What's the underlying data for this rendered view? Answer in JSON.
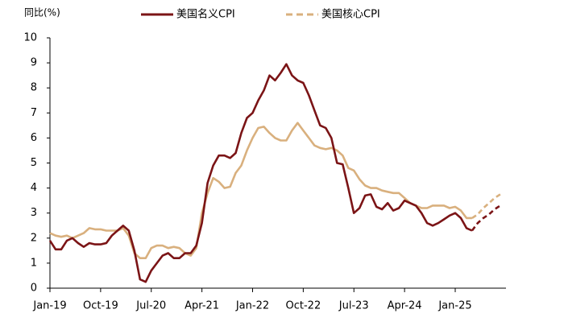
{
  "chart_data": {
    "type": "line",
    "y_axis_label": "同比(%)",
    "categories": [
      "Jan-19",
      null,
      null,
      null,
      null,
      null,
      null,
      null,
      null,
      "Oct-19",
      null,
      null,
      null,
      null,
      null,
      null,
      null,
      null,
      "Jul-20",
      null,
      null,
      null,
      null,
      null,
      null,
      null,
      null,
      "Apr-21",
      null,
      null,
      null,
      null,
      null,
      null,
      null,
      null,
      "Jan-22",
      null,
      null,
      null,
      null,
      null,
      null,
      null,
      null,
      "Oct-22",
      null,
      null,
      null,
      null,
      null,
      null,
      null,
      null,
      "Jul-23",
      null,
      null,
      null,
      null,
      null,
      null,
      null,
      null,
      "Apr-24",
      null,
      null,
      null,
      null,
      null,
      null,
      null,
      null,
      "Jan-25",
      null,
      null,
      null,
      null,
      null,
      null,
      null,
      null
    ],
    "ylim": [
      0,
      10
    ],
    "yticks": [
      0,
      1,
      2,
      3,
      4,
      5,
      6,
      7,
      8,
      9,
      10
    ],
    "series": [
      {
        "name": "美国名义CPI",
        "color": "#7b1416",
        "legend_style": "solid",
        "values": [
          1.9,
          1.55,
          1.55,
          1.9,
          2.0,
          1.8,
          1.65,
          1.8,
          1.75,
          1.75,
          1.8,
          2.1,
          2.3,
          2.5,
          2.3,
          1.5,
          0.35,
          0.25,
          0.7,
          1.0,
          1.3,
          1.4,
          1.2,
          1.2,
          1.4,
          1.4,
          1.7,
          2.6,
          4.2,
          4.9,
          5.3,
          5.3,
          5.2,
          5.4,
          6.2,
          6.8,
          7.0,
          7.5,
          7.9,
          8.5,
          8.3,
          8.6,
          8.95,
          8.5,
          8.3,
          8.2,
          7.7,
          7.1,
          6.5,
          6.4,
          6.0,
          5.0,
          4.95,
          4.0,
          3.0,
          3.2,
          3.7,
          3.75,
          3.25,
          3.15,
          3.4,
          3.1,
          3.2,
          3.5,
          3.4,
          3.3,
          3.0,
          2.6,
          2.5,
          2.6,
          2.75,
          2.9,
          3.0,
          2.8,
          2.4,
          2.3,
          null,
          null,
          null,
          null,
          null
        ],
        "forecast_values": [
          null,
          null,
          null,
          null,
          null,
          null,
          null,
          null,
          null,
          null,
          null,
          null,
          null,
          null,
          null,
          null,
          null,
          null,
          null,
          null,
          null,
          null,
          null,
          null,
          null,
          null,
          null,
          null,
          null,
          null,
          null,
          null,
          null,
          null,
          null,
          null,
          null,
          null,
          null,
          null,
          null,
          null,
          null,
          null,
          null,
          null,
          null,
          null,
          null,
          null,
          null,
          null,
          null,
          null,
          null,
          null,
          null,
          null,
          null,
          null,
          null,
          null,
          null,
          null,
          null,
          null,
          null,
          null,
          null,
          null,
          null,
          null,
          null,
          null,
          null,
          2.3,
          2.6,
          2.8,
          2.95,
          3.15,
          3.3
        ]
      },
      {
        "name": "美国核心CPI",
        "color": "#d9b07e",
        "legend_style": "dashed",
        "values": [
          2.2,
          2.1,
          2.05,
          2.1,
          2.0,
          2.1,
          2.2,
          2.4,
          2.35,
          2.35,
          2.3,
          2.3,
          2.3,
          2.4,
          2.1,
          1.4,
          1.2,
          1.2,
          1.6,
          1.7,
          1.7,
          1.6,
          1.65,
          1.6,
          1.4,
          1.3,
          1.6,
          3.0,
          3.8,
          4.4,
          4.25,
          4.0,
          4.05,
          4.6,
          4.9,
          5.5,
          6.0,
          6.4,
          6.45,
          6.2,
          6.0,
          5.9,
          5.9,
          6.3,
          6.6,
          6.3,
          6.0,
          5.7,
          5.6,
          5.55,
          5.6,
          5.5,
          5.3,
          4.8,
          4.7,
          4.35,
          4.1,
          4.0,
          4.0,
          3.9,
          3.85,
          3.8,
          3.8,
          3.6,
          3.4,
          3.3,
          3.2,
          3.2,
          3.3,
          3.3,
          3.3,
          3.2,
          3.25,
          3.1,
          2.8,
          2.8,
          null,
          null,
          null,
          null,
          null
        ],
        "forecast_values": [
          null,
          null,
          null,
          null,
          null,
          null,
          null,
          null,
          null,
          null,
          null,
          null,
          null,
          null,
          null,
          null,
          null,
          null,
          null,
          null,
          null,
          null,
          null,
          null,
          null,
          null,
          null,
          null,
          null,
          null,
          null,
          null,
          null,
          null,
          null,
          null,
          null,
          null,
          null,
          null,
          null,
          null,
          null,
          null,
          null,
          null,
          null,
          null,
          null,
          null,
          null,
          null,
          null,
          null,
          null,
          null,
          null,
          null,
          null,
          null,
          null,
          null,
          null,
          null,
          null,
          null,
          null,
          null,
          null,
          null,
          null,
          null,
          null,
          null,
          null,
          2.8,
          2.95,
          3.2,
          3.4,
          3.6,
          3.75
        ]
      }
    ]
  }
}
